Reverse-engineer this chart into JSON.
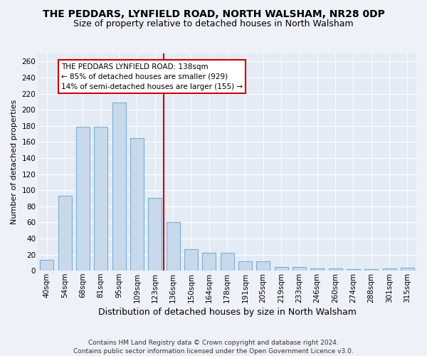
{
  "title": "THE PEDDARS, LYNFIELD ROAD, NORTH WALSHAM, NR28 0DP",
  "subtitle": "Size of property relative to detached houses in North Walsham",
  "xlabel": "Distribution of detached houses by size in North Walsham",
  "ylabel": "Number of detached properties",
  "footer_line1": "Contains HM Land Registry data © Crown copyright and database right 2024.",
  "footer_line2": "Contains public sector information licensed under the Open Government Licence v3.0.",
  "bar_labels": [
    "40sqm",
    "54sqm",
    "68sqm",
    "81sqm",
    "95sqm",
    "109sqm",
    "123sqm",
    "136sqm",
    "150sqm",
    "164sqm",
    "178sqm",
    "191sqm",
    "205sqm",
    "219sqm",
    "233sqm",
    "246sqm",
    "260sqm",
    "274sqm",
    "288sqm",
    "301sqm",
    "315sqm"
  ],
  "bar_values": [
    13,
    93,
    179,
    179,
    209,
    165,
    90,
    60,
    27,
    22,
    22,
    12,
    12,
    5,
    5,
    3,
    3,
    2,
    2,
    3,
    4
  ],
  "bar_color": "#c8d9ec",
  "bar_edge_color": "#7aafd4",
  "vline_x_index": 7,
  "vline_color": "#cc0000",
  "annotation_title": "THE PEDDARS LYNFIELD ROAD: 138sqm",
  "annotation_line1": "← 85% of detached houses are smaller (929)",
  "annotation_line2": "14% of semi-detached houses are larger (155) →",
  "annotation_box_facecolor": "#ffffff",
  "annotation_box_edgecolor": "#cc0000",
  "ylim": [
    0,
    270
  ],
  "yticks": [
    0,
    20,
    40,
    60,
    80,
    100,
    120,
    140,
    160,
    180,
    200,
    220,
    240,
    260
  ],
  "title_fontsize": 10,
  "subtitle_fontsize": 9,
  "xlabel_fontsize": 9,
  "ylabel_fontsize": 8,
  "tick_fontsize": 7.5,
  "annotation_fontsize": 7.5,
  "footer_fontsize": 6.5,
  "background_color": "#eef2f8",
  "plot_background_color": "#e4ebf5"
}
